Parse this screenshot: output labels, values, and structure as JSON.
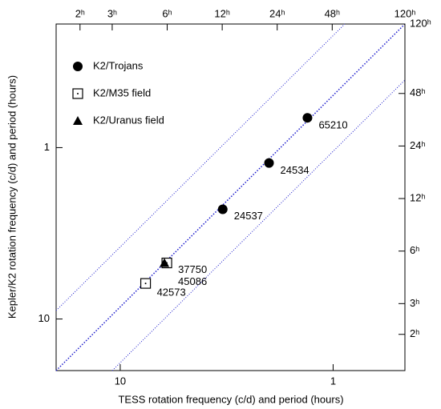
{
  "chart_data": {
    "type": "scatter",
    "xlabel": "TESS rotation frequency (c/d) and period (hours)",
    "ylabel": "Kepler/K2 rotation frequency (c/d) and period (hours)",
    "xscale": "log",
    "yscale": "log",
    "xlim": [
      20,
      0.46
    ],
    "xticks": [
      10,
      1
    ],
    "ylim": [
      0.19,
      20
    ],
    "yticks": [
      1,
      10
    ],
    "x2lim": [
      1.48,
      120
    ],
    "x2ticks": [
      {
        "value": 2,
        "label": "2ʰ"
      },
      {
        "value": 3,
        "label": "3ʰ"
      },
      {
        "value": 6,
        "label": "6ʰ"
      },
      {
        "value": 12,
        "label": "12ʰ"
      },
      {
        "value": 24,
        "label": "24ʰ"
      },
      {
        "value": 48,
        "label": "48ʰ"
      },
      {
        "value": 120,
        "label": "120ʰ"
      }
    ],
    "y2lim": [
      120,
      1.24
    ],
    "y2ticks": [
      {
        "value": 120,
        "label": "120ʰ"
      },
      {
        "value": 48,
        "label": "48ʰ"
      },
      {
        "value": 24,
        "label": "24ʰ"
      },
      {
        "value": 12,
        "label": "12ʰ"
      },
      {
        "value": 6,
        "label": "6ʰ"
      },
      {
        "value": 3,
        "label": "3ʰ"
      },
      {
        "value": 2,
        "label": "2ʰ"
      }
    ],
    "series": [
      {
        "name": "K2/Trojans",
        "marker": "circle",
        "color": "#000000",
        "x": [
          1.32,
          2.0,
          3.3
        ],
        "y": [
          0.67,
          1.23,
          2.29
        ],
        "labels": [
          "65210",
          "24534",
          "24537"
        ]
      },
      {
        "name": "K2/M35 field",
        "marker": "square",
        "color": "#000000",
        "x": [
          6.04,
          7.6
        ],
        "y": [
          4.71,
          6.2
        ],
        "labels": [
          "37750",
          "42573"
        ]
      },
      {
        "name": "K2/Uranus field",
        "marker": "triangle",
        "color": "#000000",
        "x": [
          6.2
        ],
        "y": [
          4.71
        ],
        "labels": [
          "45086"
        ]
      }
    ]
  }
}
